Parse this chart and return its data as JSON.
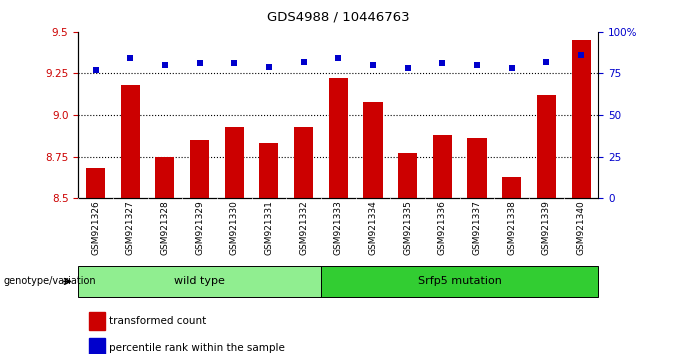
{
  "title": "GDS4988 / 10446763",
  "samples": [
    "GSM921326",
    "GSM921327",
    "GSM921328",
    "GSM921329",
    "GSM921330",
    "GSM921331",
    "GSM921332",
    "GSM921333",
    "GSM921334",
    "GSM921335",
    "GSM921336",
    "GSM921337",
    "GSM921338",
    "GSM921339",
    "GSM921340"
  ],
  "bar_values": [
    8.68,
    9.18,
    8.75,
    8.85,
    8.93,
    8.83,
    8.93,
    9.22,
    9.08,
    8.77,
    8.88,
    8.86,
    8.63,
    9.12,
    9.45
  ],
  "percentile_values": [
    77,
    84,
    80,
    81,
    81,
    79,
    82,
    84,
    80,
    78,
    81,
    80,
    78,
    82,
    86
  ],
  "ylim_left": [
    8.5,
    9.5
  ],
  "ylim_right": [
    0,
    100
  ],
  "yticks_left": [
    8.5,
    8.75,
    9.0,
    9.25,
    9.5
  ],
  "yticks_right": [
    0,
    25,
    50,
    75,
    100
  ],
  "ytick_labels_right": [
    "0",
    "25",
    "50",
    "75",
    "100%"
  ],
  "bar_color": "#cc0000",
  "dot_color": "#0000cc",
  "bar_bottom": 8.5,
  "groups": [
    {
      "label": "wild type",
      "start": 0,
      "end": 7,
      "color": "#90ee90"
    },
    {
      "label": "Srfp5 mutation",
      "start": 7,
      "end": 15,
      "color": "#32cd32"
    }
  ],
  "group_row_label": "genotype/variation",
  "legend_bar_label": "transformed count",
  "legend_dot_label": "percentile rank within the sample",
  "dotted_line_y": [
    8.75,
    9.0,
    9.25
  ],
  "xtick_bg_color": "#b0b0b0",
  "plot_bg_color": "#ffffff"
}
